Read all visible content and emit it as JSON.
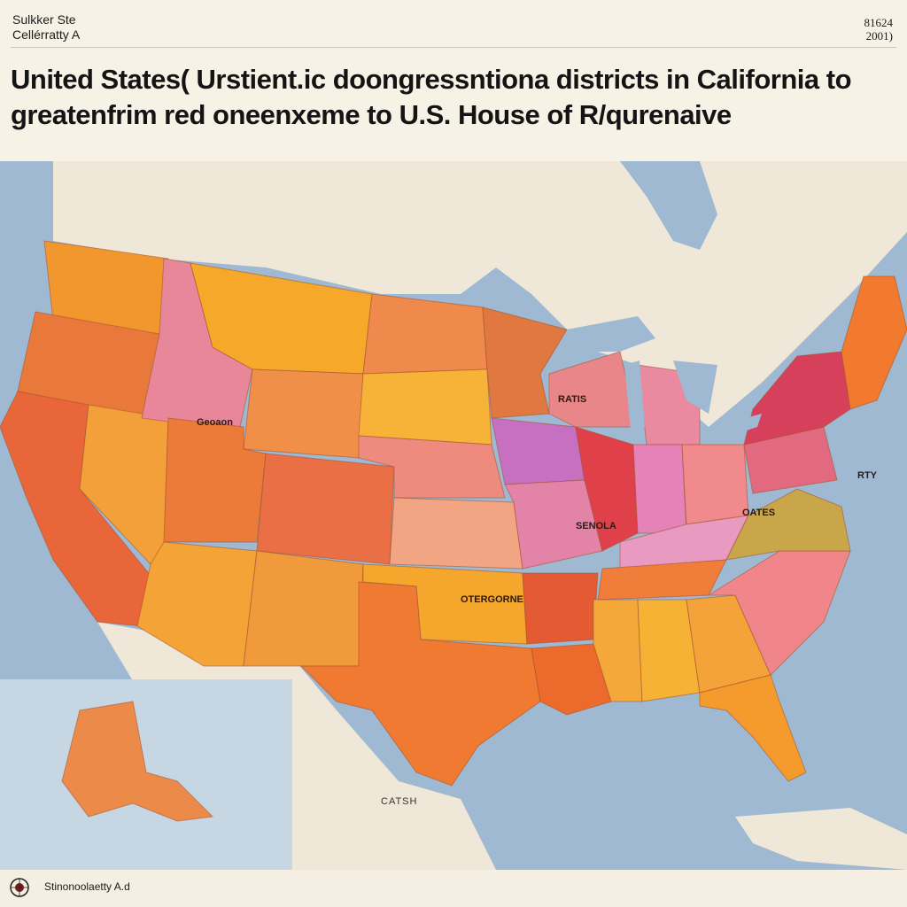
{
  "header": {
    "top_left_line1": "Sulkker Ste",
    "top_left_line2": "Cellérratty A",
    "top_right_line1": "81624",
    "top_right_line2": "2001)",
    "title_line1": "United States( Urstient.ic doongressntiona districts  in California to",
    "title_line2": "greatenfrim red oneenxeme to U.S. House of R/qurenaive"
  },
  "map": {
    "ocean_color": "#9fb9d2",
    "land_color": "#efe8d8",
    "labels": {
      "idaho_area": "Geoaon",
      "midwest": "RATIS",
      "missouri": "SENOLA",
      "oklahoma": "OTERGORNE",
      "virginia": "OATES",
      "delaware": "RTY",
      "gulf": "CATSH"
    }
  },
  "footer": {
    "text": "Stinonoolaetty A.d"
  }
}
